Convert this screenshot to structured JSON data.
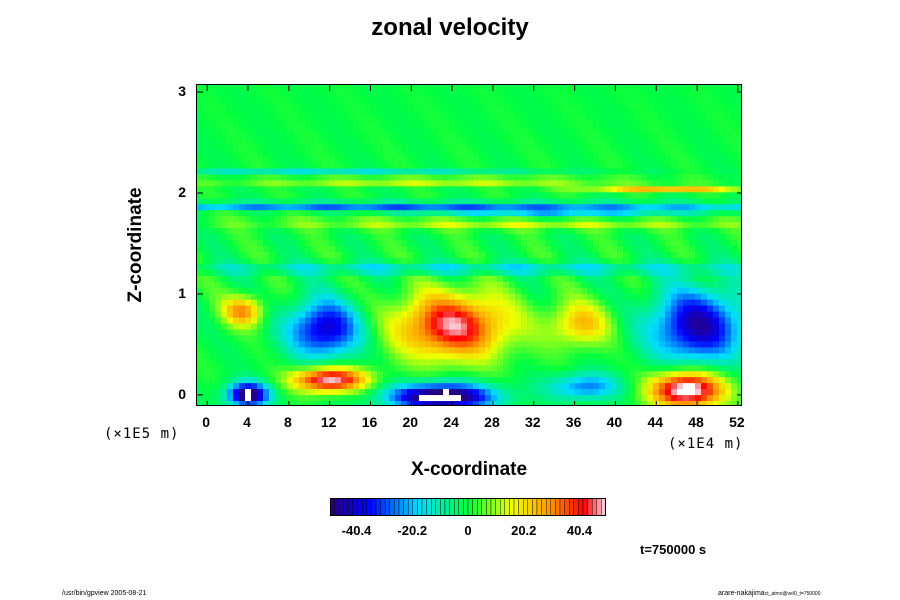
{
  "chart_data": {
    "type": "heatmap",
    "title": "zonal velocity",
    "xlabel": "X-coordinate",
    "ylabel": "Z-coordinate",
    "x_unit": "(×1E4 m)",
    "z_unit": "(×1E5 m)",
    "x_ticks": [
      "0",
      "4",
      "8",
      "12",
      "16",
      "20",
      "24",
      "28",
      "32",
      "36",
      "40",
      "44",
      "48",
      "52"
    ],
    "z_ticks": [
      "0",
      "1",
      "2",
      "3"
    ],
    "xlim": [
      -1,
      52.5
    ],
    "zlim": [
      -0.12,
      3.07
    ],
    "colorbar": {
      "range": [
        -50,
        50
      ],
      "ticks": [
        "-40.4",
        "-20.2",
        "0",
        "20.2",
        "40.4"
      ],
      "tick_values": [
        -40.4,
        -20.2,
        0,
        20.2,
        40.4
      ]
    },
    "time_label": "t=750000 s",
    "features": [
      {
        "sign": "positive",
        "x": 3.5,
        "z": 0.83,
        "rx": 2.0,
        "rz": 0.15,
        "amp": 30
      },
      {
        "sign": "negative",
        "x": 11.5,
        "z": 0.65,
        "rx": 3.5,
        "rz": 0.28,
        "amp": -42
      },
      {
        "sign": "positive",
        "x": 24.0,
        "z": 0.68,
        "rx": 5.5,
        "rz": 0.32,
        "amp": 46
      },
      {
        "sign": "positive",
        "x": 36.5,
        "z": 0.7,
        "rx": 3.0,
        "rz": 0.22,
        "amp": 24
      },
      {
        "sign": "negative",
        "x": 48.0,
        "z": 0.68,
        "rx": 4.5,
        "rz": 0.36,
        "amp": -44
      },
      {
        "sign": "negative",
        "x": 4.0,
        "z": 0.0,
        "rx": 2.0,
        "rz": 0.12,
        "amp": -55
      },
      {
        "sign": "positive",
        "x": 12.0,
        "z": 0.15,
        "rx": 3.5,
        "rz": 0.12,
        "amp": 52
      },
      {
        "sign": "negative",
        "x": 23.0,
        "z": -0.02,
        "rx": 5.0,
        "rz": 0.13,
        "amp": -60
      },
      {
        "sign": "negative",
        "x": 37.0,
        "z": 0.08,
        "rx": 3.5,
        "rz": 0.13,
        "amp": -26
      },
      {
        "sign": "positive",
        "x": 47.0,
        "z": 0.05,
        "rx": 3.5,
        "rz": 0.18,
        "amp": 58
      },
      {
        "sign": "negative",
        "x": 22.0,
        "z": 1.88,
        "rx": 40.0,
        "rz": 0.025,
        "amp": -56
      },
      {
        "sign": "positive",
        "x": 22.0,
        "z": 2.12,
        "rx": 20.0,
        "rz": 0.03,
        "amp": 24
      },
      {
        "sign": "negative",
        "x": 34.0,
        "z": 1.78,
        "rx": 14.0,
        "rz": 0.03,
        "amp": -32
      },
      {
        "sign": "positive",
        "x": 30.0,
        "z": 1.7,
        "rx": 25.0,
        "rz": 0.06,
        "amp": 14
      },
      {
        "sign": "negative",
        "x": 12.0,
        "z": 2.2,
        "rx": 20.0,
        "rz": 0.03,
        "amp": -16
      },
      {
        "sign": "negative",
        "x": 26.0,
        "z": 1.25,
        "rx": 30.0,
        "rz": 0.06,
        "amp": -16
      },
      {
        "sign": "positive",
        "x": 45.0,
        "z": 2.04,
        "rx": 8.0,
        "rz": 0.025,
        "amp": 26
      }
    ]
  },
  "footer": {
    "left": "/usr/bin/gpview 2005-08-21",
    "right": "arare-nakajima",
    "right_small": "ct_atmo@vel0_t=750000"
  }
}
